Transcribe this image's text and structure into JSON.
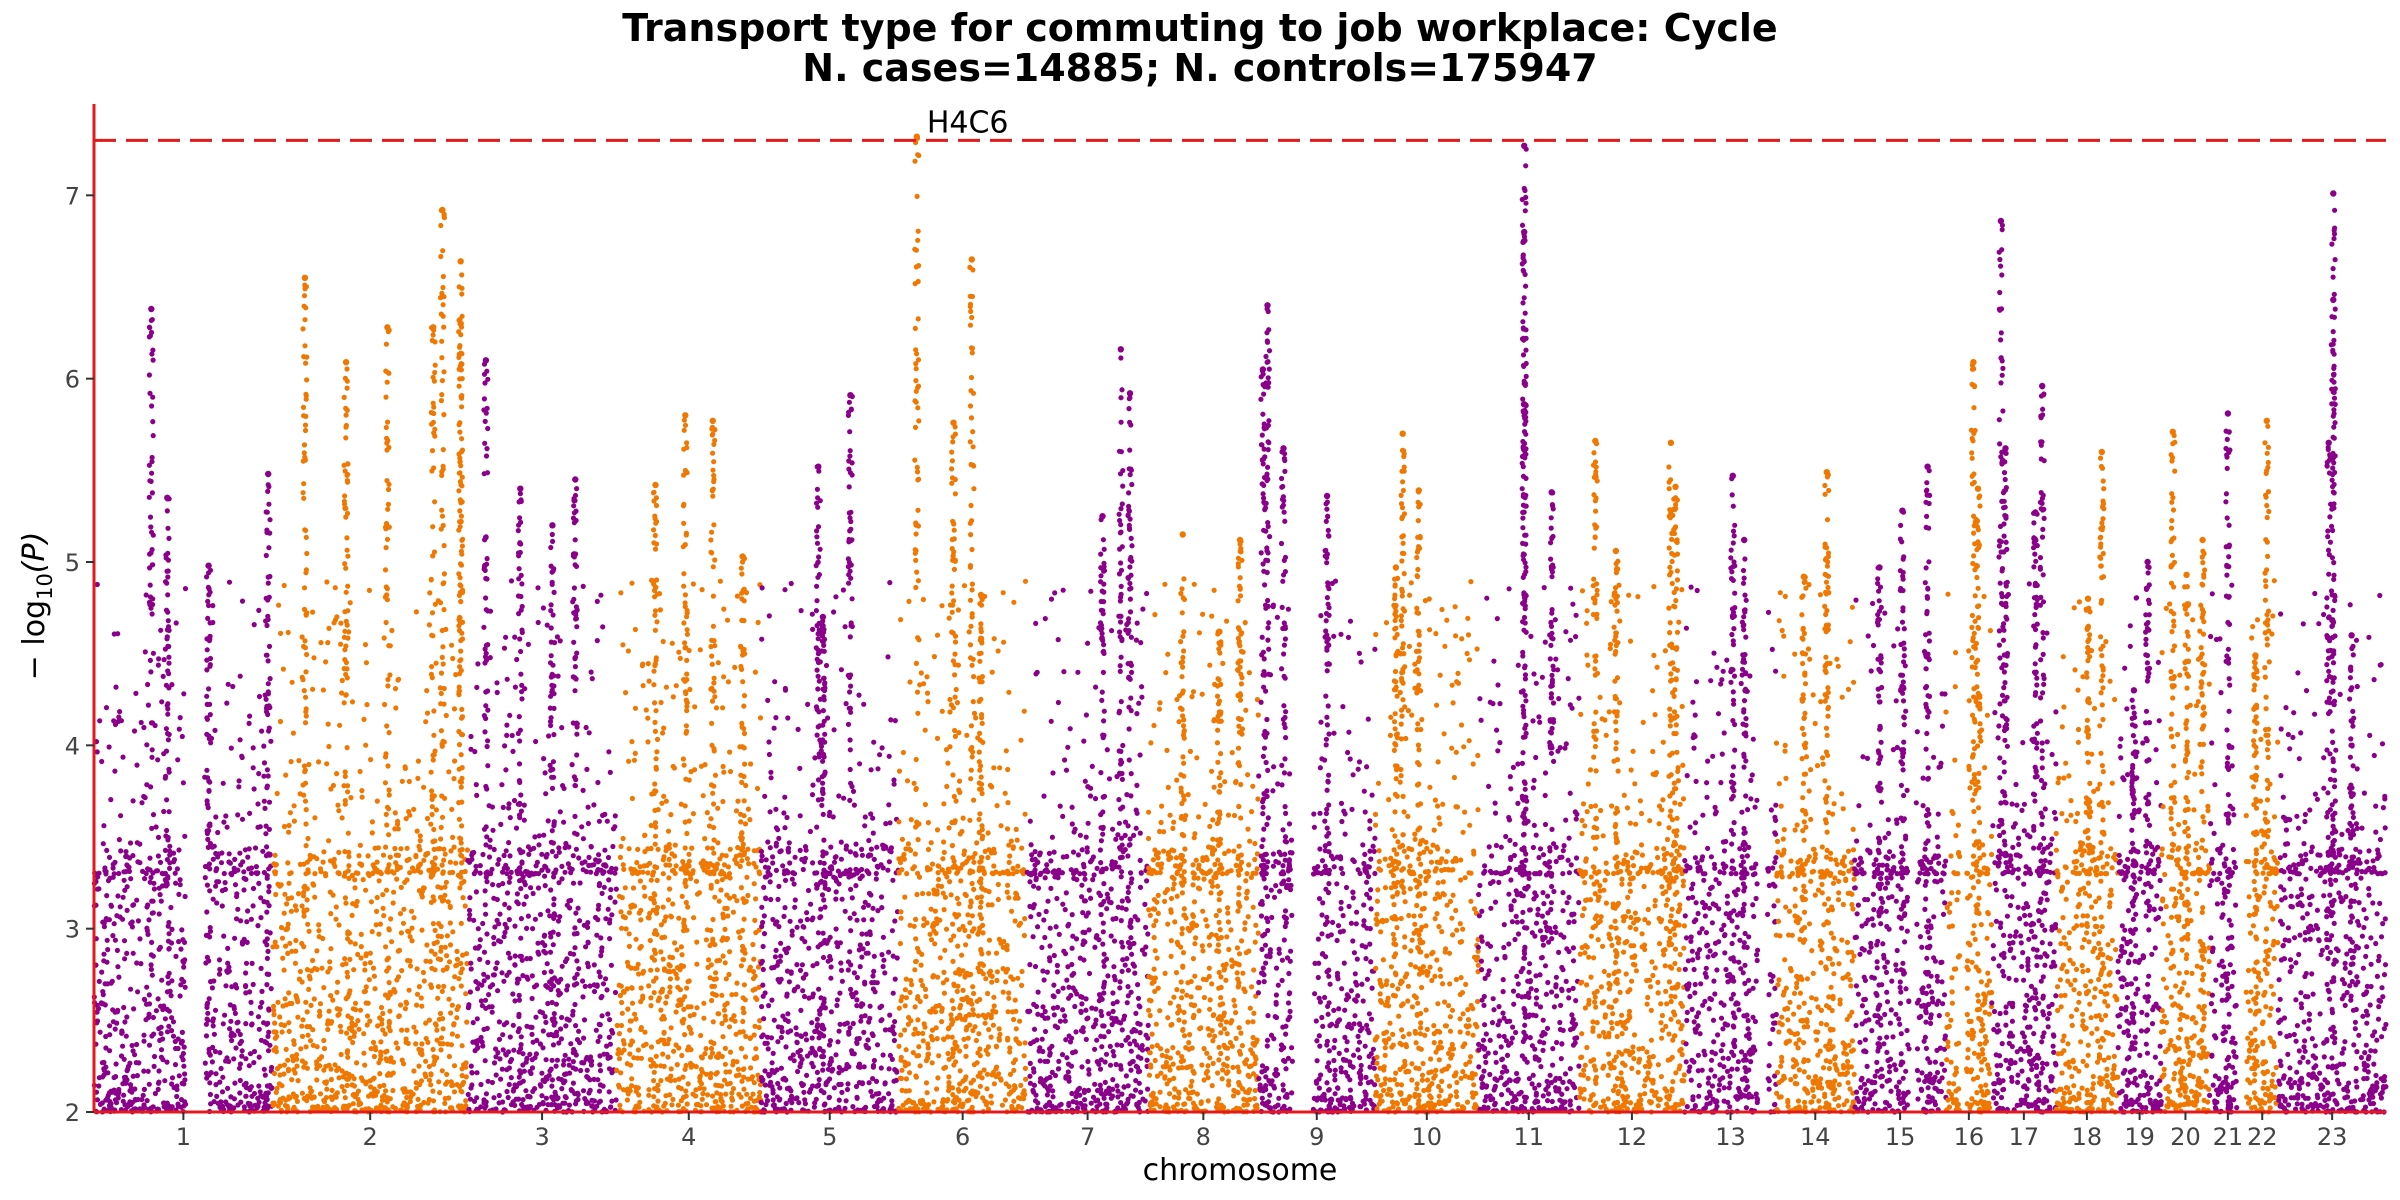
{
  "chart_data": {
    "type": "scatter",
    "title": "Transport type for commuting to job workplace: Cycle",
    "subtitle": "N. cases=14885; N. controls=175947",
    "xlabel": "chromosome",
    "ylabel_main": "− log",
    "ylabel_sub": "10",
    "ylabel_tail": "(P)",
    "ylim": [
      2,
      7.52
    ],
    "yticks": [
      2,
      3,
      4,
      5,
      6,
      7
    ],
    "significance_threshold": 7.3,
    "grid": false,
    "legend": "none",
    "colors": {
      "odd": "#8b008b",
      "even": "#f07800",
      "threshold": "#e31a1c",
      "axis": "#e31a1c"
    },
    "chromosomes": [
      {
        "label": "1",
        "span": [
          0.0,
          0.078
        ],
        "gaps": [
          [
            0.04,
            0.048
          ]
        ],
        "peaks": [
          [
            0.025,
            6.38
          ],
          [
            0.032,
            5.35
          ],
          [
            0.05,
            4.98
          ],
          [
            0.076,
            5.48
          ]
        ]
      },
      {
        "label": "2",
        "span": [
          0.078,
          0.163
        ],
        "gaps": [],
        "peaks": [
          [
            0.092,
            6.55
          ],
          [
            0.11,
            6.09
          ],
          [
            0.128,
            6.28
          ],
          [
            0.152,
            6.92
          ],
          [
            0.148,
            6.28
          ],
          [
            0.16,
            6.64
          ],
          [
            0.16,
            6.3
          ]
        ]
      },
      {
        "label": "3",
        "span": [
          0.163,
          0.228
        ],
        "gaps": [],
        "peaks": [
          [
            0.171,
            6.1
          ],
          [
            0.186,
            5.4
          ],
          [
            0.21,
            5.45
          ],
          [
            0.2,
            5.2
          ]
        ]
      },
      {
        "label": "4",
        "span": [
          0.228,
          0.291
        ],
        "gaps": [],
        "peaks": [
          [
            0.245,
            5.42
          ],
          [
            0.258,
            5.8
          ],
          [
            0.27,
            5.77
          ],
          [
            0.283,
            5.03
          ]
        ]
      },
      {
        "label": "5",
        "span": [
          0.291,
          0.351
        ],
        "gaps": [],
        "peaks": [
          [
            0.316,
            5.52
          ],
          [
            0.33,
            5.91
          ],
          [
            0.318,
            4.7
          ]
        ]
      },
      {
        "label": "6",
        "span": [
          0.351,
          0.407
        ],
        "gaps": [],
        "peaks": [
          [
            0.359,
            7.32
          ],
          [
            0.383,
            6.65
          ],
          [
            0.375,
            5.76
          ],
          [
            0.387,
            4.82
          ]
        ]
      },
      {
        "label": "7",
        "span": [
          0.407,
          0.46
        ],
        "gaps": [],
        "peaks": [
          [
            0.448,
            6.16
          ],
          [
            0.452,
            5.92
          ],
          [
            0.44,
            5.25
          ]
        ]
      },
      {
        "label": "8",
        "span": [
          0.46,
          0.508
        ],
        "gaps": [],
        "peaks": [
          [
            0.475,
            5.15
          ],
          [
            0.5,
            5.12
          ],
          [
            0.491,
            4.62
          ]
        ]
      },
      {
        "label": "9",
        "span": [
          0.508,
          0.559
        ],
        "gaps": [
          [
            0.523,
            0.532
          ]
        ],
        "peaks": [
          [
            0.51,
            6.05
          ],
          [
            0.512,
            6.4
          ],
          [
            0.519,
            5.62
          ],
          [
            0.538,
            5.36
          ]
        ]
      },
      {
        "label": "10",
        "span": [
          0.559,
          0.604
        ],
        "gaps": [],
        "peaks": [
          [
            0.568,
            4.97
          ],
          [
            0.571,
            5.7
          ],
          [
            0.578,
            5.39
          ]
        ]
      },
      {
        "label": "11",
        "span": [
          0.604,
          0.648
        ],
        "gaps": [],
        "peaks": [
          [
            0.624,
            7.27
          ],
          [
            0.624,
            6.8
          ],
          [
            0.624,
            5.86
          ],
          [
            0.636,
            5.38
          ]
        ]
      },
      {
        "label": "12",
        "span": [
          0.648,
          0.694
        ],
        "gaps": [],
        "peaks": [
          [
            0.655,
            5.66
          ],
          [
            0.664,
            5.06
          ],
          [
            0.688,
            5.65
          ],
          [
            0.69,
            5.41
          ]
        ]
      },
      {
        "label": "13",
        "span": [
          0.694,
          0.734
        ],
        "gaps": [
          [
            0.726,
            0.73
          ]
        ],
        "peaks": [
          [
            0.715,
            5.47
          ],
          [
            0.72,
            5.12
          ]
        ]
      },
      {
        "label": "14",
        "span": [
          0.734,
          0.768
        ],
        "gaps": [],
        "peaks": [
          [
            0.756,
            5.49
          ],
          [
            0.746,
            4.92
          ]
        ]
      },
      {
        "label": "15",
        "span": [
          0.768,
          0.808
        ],
        "gaps": [
          [
            0.792,
            0.795
          ]
        ],
        "peaks": [
          [
            0.779,
            4.97
          ],
          [
            0.789,
            5.28
          ],
          [
            0.8,
            5.52
          ]
        ]
      },
      {
        "label": "16",
        "span": [
          0.808,
          0.828
        ],
        "gaps": [
          [
            0.814,
            0.817
          ]
        ],
        "peaks": [
          [
            0.82,
            6.09
          ],
          [
            0.822,
            5.4
          ]
        ]
      },
      {
        "label": "17",
        "span": [
          0.828,
          0.856
        ],
        "gaps": [],
        "peaks": [
          [
            0.832,
            6.86
          ],
          [
            0.834,
            5.62
          ],
          [
            0.847,
            5.27
          ],
          [
            0.85,
            5.96
          ]
        ]
      },
      {
        "label": "18",
        "span": [
          0.856,
          0.883
        ],
        "gaps": [],
        "peaks": [
          [
            0.87,
            4.8
          ],
          [
            0.876,
            5.6
          ]
        ]
      },
      {
        "label": "19",
        "span": [
          0.883,
          0.902
        ],
        "gaps": [],
        "peaks": [
          [
            0.89,
            4.3
          ],
          [
            0.896,
            5.0
          ]
        ]
      },
      {
        "label": "20",
        "span": [
          0.902,
          0.923
        ],
        "gaps": [],
        "peaks": [
          [
            0.907,
            5.71
          ],
          [
            0.913,
            4.93
          ],
          [
            0.92,
            5.12
          ]
        ]
      },
      {
        "label": "21",
        "span": [
          0.923,
          0.939
        ],
        "gaps": [
          [
            0.935,
            0.939
          ]
        ],
        "peaks": [
          [
            0.931,
            5.81
          ]
        ]
      },
      {
        "label": "22",
        "span": [
          0.939,
          0.953
        ],
        "gaps": [],
        "peaks": [
          [
            0.943,
            4.49
          ],
          [
            0.948,
            5.77
          ]
        ]
      },
      {
        "label": "23",
        "span": [
          0.953,
          1.0
        ],
        "gaps": [],
        "peaks": [
          [
            0.977,
            7.01
          ],
          [
            0.977,
            6.43
          ],
          [
            0.975,
            5.65
          ],
          [
            0.985,
            4.6
          ]
        ]
      }
    ],
    "annotations": [
      {
        "text": "H4C6",
        "x": 0.359,
        "y": 7.32
      }
    ]
  }
}
